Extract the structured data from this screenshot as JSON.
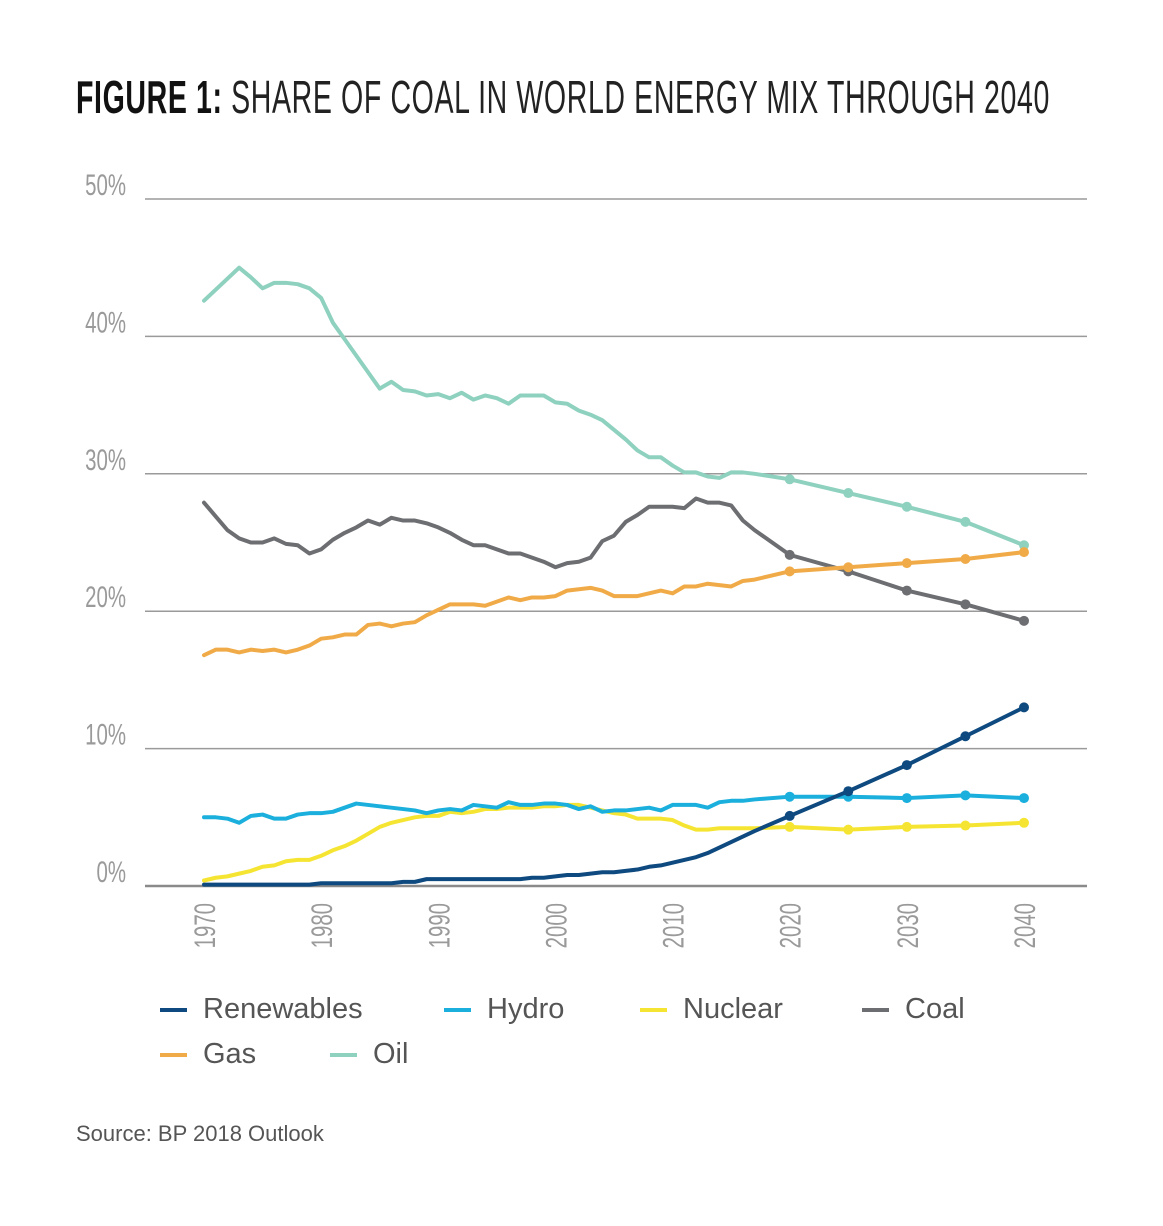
{
  "title_prefix": "FIGURE 1:",
  "title_main": "SHARE OF COAL IN WORLD ENERGY MIX THROUGH 2040",
  "source": "Source: BP 2018 Outlook",
  "chart_data": {
    "type": "line",
    "title": "FIGURE 1: SHARE OF COAL IN WORLD ENERGY MIX THROUGH 2040",
    "xlabel": "",
    "ylabel": "",
    "ylim": [
      0,
      50
    ],
    "xlim": [
      1970,
      2040
    ],
    "grid": true,
    "legend_position": "bottom",
    "y_ticks": [
      "0%",
      "10%",
      "20%",
      "30%",
      "40%",
      "50%"
    ],
    "x_ticks": [
      "1970",
      "1980",
      "1990",
      "2000",
      "2010",
      "2020",
      "2030",
      "2040"
    ],
    "projection_markers": [
      2020,
      2025,
      2030,
      2035,
      2040
    ],
    "x": [
      1970,
      1971,
      1972,
      1973,
      1974,
      1975,
      1976,
      1977,
      1978,
      1979,
      1980,
      1981,
      1982,
      1983,
      1984,
      1985,
      1986,
      1987,
      1988,
      1989,
      1990,
      1991,
      1992,
      1993,
      1994,
      1995,
      1996,
      1997,
      1998,
      1999,
      2000,
      2001,
      2002,
      2003,
      2004,
      2005,
      2006,
      2007,
      2008,
      2009,
      2010,
      2011,
      2012,
      2013,
      2014,
      2015,
      2016,
      2017,
      2020,
      2025,
      2030,
      2035,
      2040
    ],
    "series": [
      {
        "name": "Oil",
        "color": "#8fd1bf",
        "values": [
          42.6,
          43.4,
          44.2,
          45.0,
          44.3,
          43.5,
          43.9,
          43.9,
          43.8,
          43.5,
          42.8,
          41.0,
          39.8,
          38.6,
          37.4,
          36.2,
          36.7,
          36.1,
          36.0,
          35.7,
          35.8,
          35.5,
          35.9,
          35.4,
          35.7,
          35.5,
          35.1,
          35.7,
          35.7,
          35.7,
          35.2,
          35.1,
          34.6,
          34.3,
          33.9,
          33.2,
          32.5,
          31.7,
          31.2,
          31.2,
          30.6,
          30.1,
          30.1,
          29.8,
          29.7,
          30.1,
          30.1,
          30.0,
          29.6,
          28.6,
          27.6,
          26.5,
          24.8
        ]
      },
      {
        "name": "Coal",
        "color": "#6d6e71",
        "values": [
          27.9,
          26.9,
          25.9,
          25.3,
          25.0,
          25.0,
          25.3,
          24.9,
          24.8,
          24.2,
          24.5,
          25.2,
          25.7,
          26.1,
          26.6,
          26.3,
          26.8,
          26.6,
          26.6,
          26.4,
          26.1,
          25.7,
          25.2,
          24.8,
          24.8,
          24.5,
          24.2,
          24.2,
          23.9,
          23.6,
          23.2,
          23.5,
          23.6,
          23.9,
          25.1,
          25.5,
          26.5,
          27.0,
          27.6,
          27.6,
          27.6,
          27.5,
          28.2,
          27.9,
          27.9,
          27.7,
          26.6,
          25.9,
          24.1,
          22.9,
          21.5,
          20.5,
          19.3
        ]
      },
      {
        "name": "Gas",
        "color": "#f0ab48",
        "values": [
          16.8,
          17.2,
          17.2,
          17.0,
          17.2,
          17.1,
          17.2,
          17.0,
          17.2,
          17.5,
          18.0,
          18.1,
          18.3,
          18.3,
          19.0,
          19.1,
          18.9,
          19.1,
          19.2,
          19.7,
          20.1,
          20.5,
          20.5,
          20.5,
          20.4,
          20.7,
          21.0,
          20.8,
          21.0,
          21.0,
          21.1,
          21.5,
          21.6,
          21.7,
          21.5,
          21.1,
          21.1,
          21.1,
          21.3,
          21.5,
          21.3,
          21.8,
          21.8,
          22.0,
          21.9,
          21.8,
          22.2,
          22.3,
          22.9,
          23.2,
          23.5,
          23.8,
          24.3
        ]
      },
      {
        "name": "Nuclear",
        "color": "#f5e532",
        "values": [
          0.4,
          0.6,
          0.7,
          0.9,
          1.1,
          1.4,
          1.5,
          1.8,
          1.9,
          1.9,
          2.2,
          2.6,
          2.9,
          3.3,
          3.8,
          4.3,
          4.6,
          4.8,
          5.0,
          5.1,
          5.1,
          5.4,
          5.3,
          5.4,
          5.6,
          5.6,
          5.7,
          5.7,
          5.7,
          5.8,
          5.8,
          5.9,
          5.9,
          5.7,
          5.5,
          5.3,
          5.2,
          4.9,
          4.9,
          4.9,
          4.8,
          4.4,
          4.1,
          4.1,
          4.2,
          4.2,
          4.2,
          4.2,
          4.3,
          4.1,
          4.3,
          4.4,
          4.6
        ]
      },
      {
        "name": "Hydro",
        "color": "#1aafdc",
        "values": [
          5.0,
          5.0,
          4.9,
          4.6,
          5.1,
          5.2,
          4.9,
          4.9,
          5.2,
          5.3,
          5.3,
          5.4,
          5.7,
          6.0,
          5.9,
          5.8,
          5.7,
          5.6,
          5.5,
          5.3,
          5.5,
          5.6,
          5.5,
          5.9,
          5.8,
          5.7,
          6.1,
          5.9,
          5.9,
          6.0,
          6.0,
          5.9,
          5.6,
          5.8,
          5.4,
          5.5,
          5.5,
          5.6,
          5.7,
          5.5,
          5.9,
          5.9,
          5.9,
          5.7,
          6.1,
          6.2,
          6.2,
          6.3,
          6.5,
          6.5,
          6.4,
          6.6,
          6.4
        ]
      },
      {
        "name": "Renewables",
        "color": "#0e4a7f",
        "values": [
          0.1,
          0.1,
          0.1,
          0.1,
          0.1,
          0.1,
          0.1,
          0.1,
          0.1,
          0.1,
          0.2,
          0.2,
          0.2,
          0.2,
          0.2,
          0.2,
          0.2,
          0.3,
          0.3,
          0.5,
          0.5,
          0.5,
          0.5,
          0.5,
          0.5,
          0.5,
          0.5,
          0.5,
          0.6,
          0.6,
          0.7,
          0.8,
          0.8,
          0.9,
          1.0,
          1.0,
          1.1,
          1.2,
          1.4,
          1.5,
          1.7,
          1.9,
          2.1,
          2.4,
          2.8,
          3.2,
          3.6,
          4.0,
          5.1,
          6.9,
          8.8,
          10.9,
          13.0
        ]
      }
    ],
    "legend": [
      {
        "name": "Renewables",
        "color": "#0e4a7f"
      },
      {
        "name": "Hydro",
        "color": "#1aafdc"
      },
      {
        "name": "Nuclear",
        "color": "#f5e532"
      },
      {
        "name": "Coal",
        "color": "#6d6e71"
      },
      {
        "name": "Gas",
        "color": "#f0ab48"
      },
      {
        "name": "Oil",
        "color": "#8fd1bf"
      }
    ]
  }
}
